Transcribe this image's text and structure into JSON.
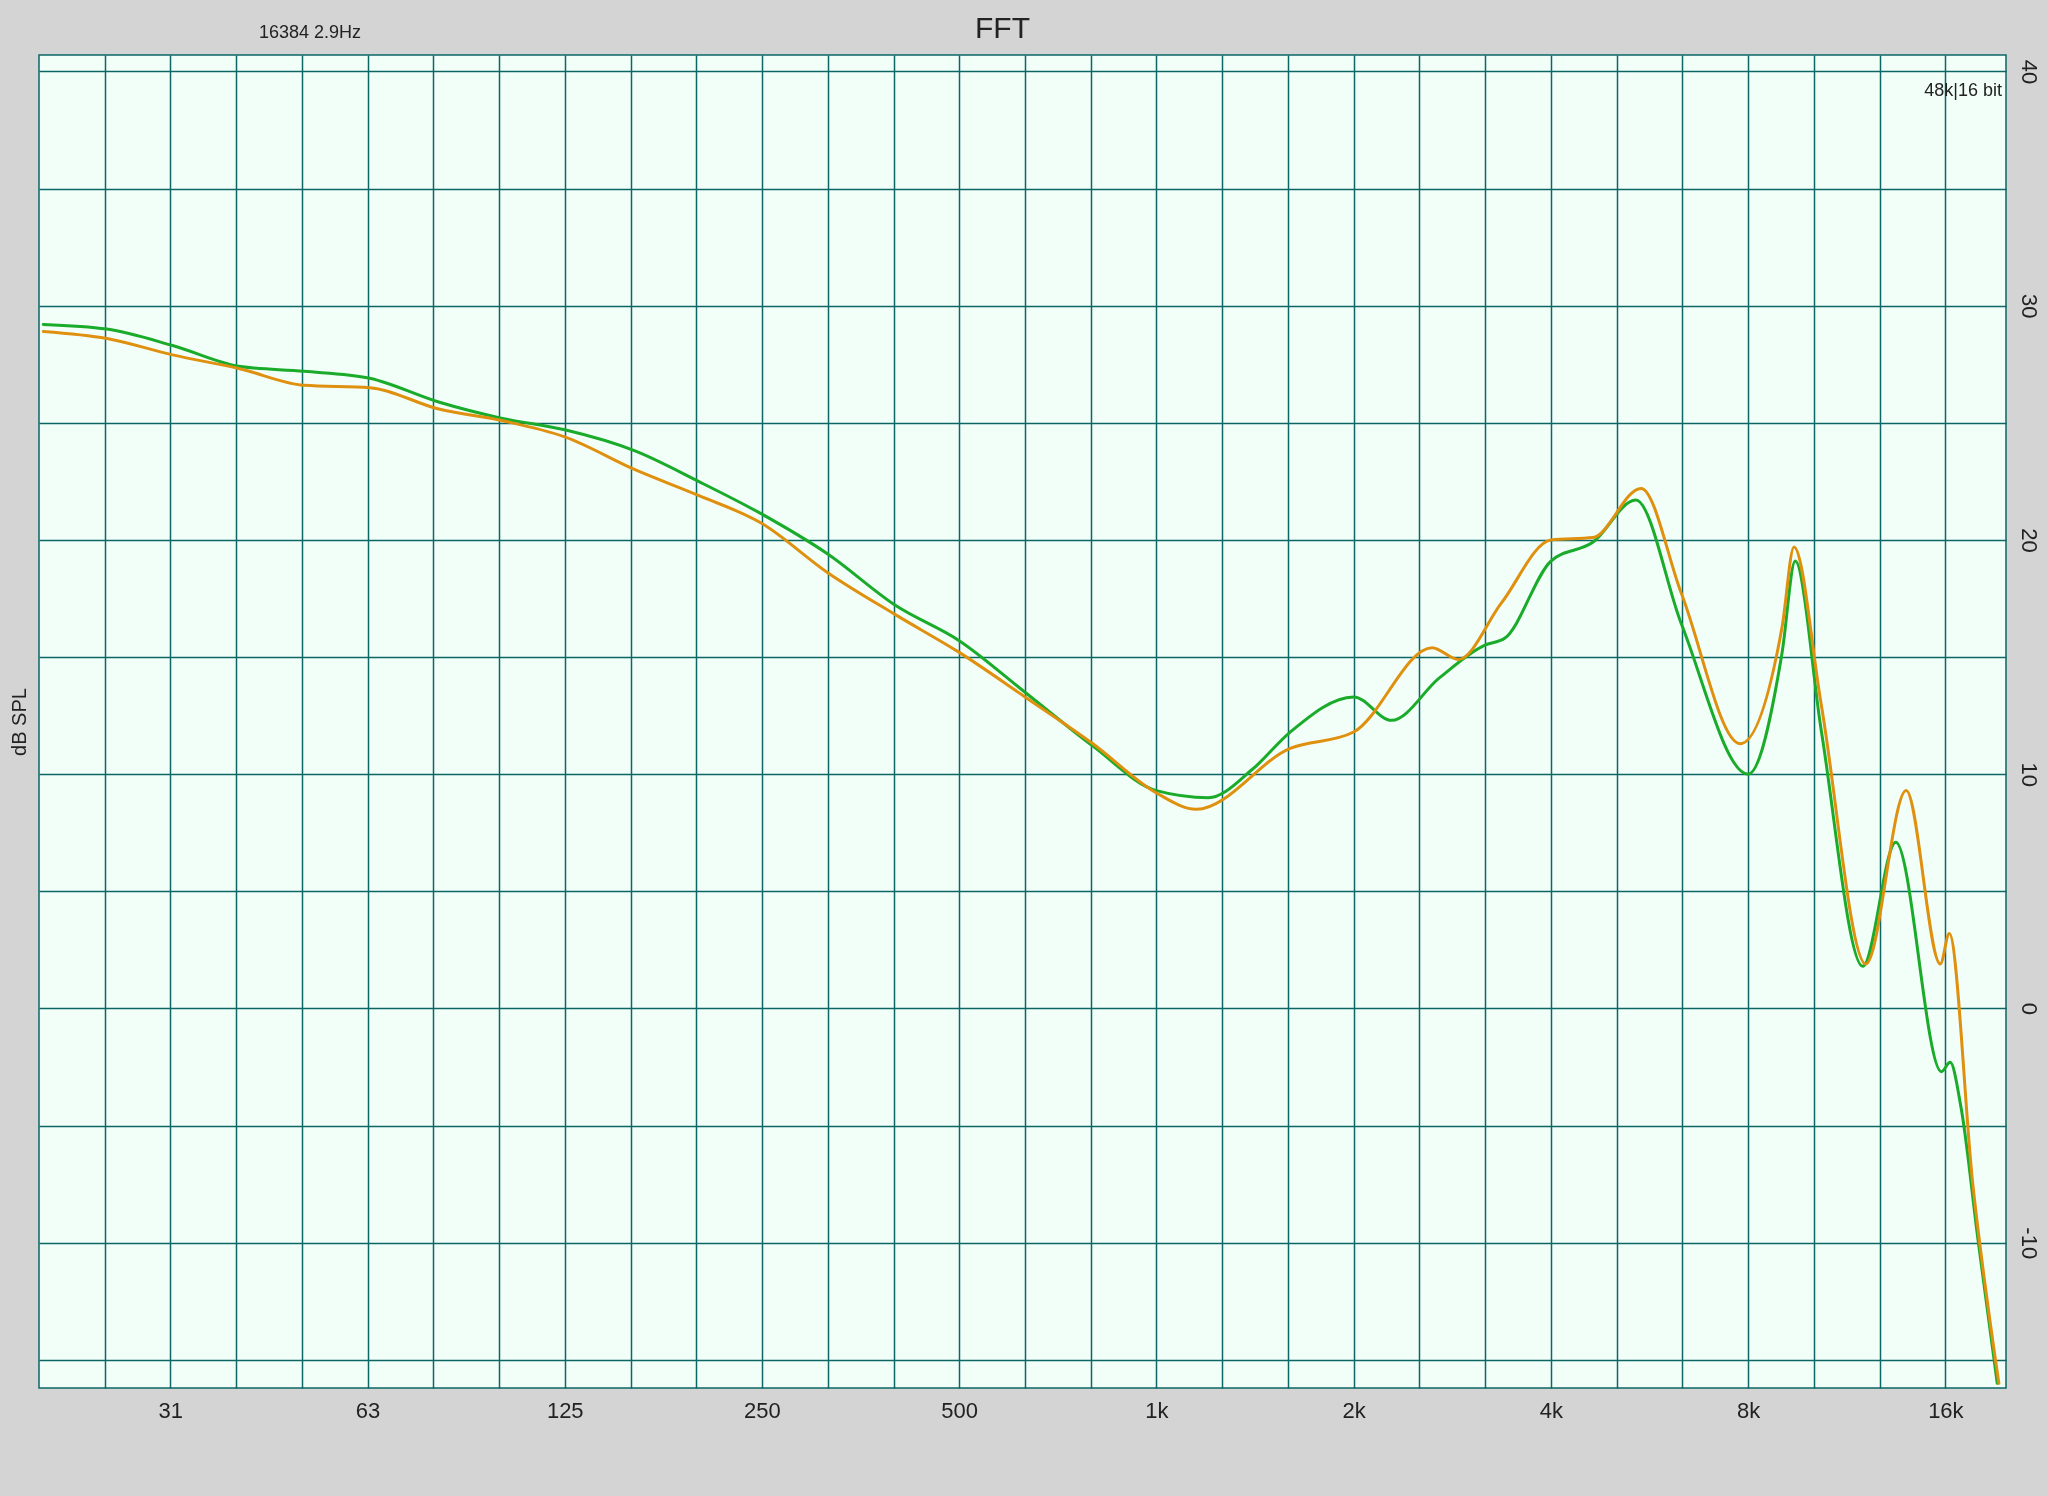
{
  "chart_data": {
    "type": "line",
    "title": "FFT",
    "ylabel": "dB SPL",
    "annotations": [
      "16384  2.9Hz",
      "48k|16 bit"
    ],
    "log": "x",
    "grid": true,
    "line_style": "solid",
    "xlim": [
      19.7,
      19800
    ],
    "ylim": [
      -16.2,
      40.7
    ],
    "xticks": [
      {
        "value": 24.8,
        "label": null
      },
      {
        "value": 31.25,
        "label": "31"
      },
      {
        "value": 39.37,
        "label": null
      },
      {
        "value": 49.61,
        "label": null
      },
      {
        "value": 62.5,
        "label": "63"
      },
      {
        "value": 78.74,
        "label": null
      },
      {
        "value": 99.21,
        "label": null
      },
      125,
      {
        "value": 157.5,
        "label": null
      },
      {
        "value": 198.4,
        "label": null
      },
      250,
      {
        "value": 315,
        "label": null
      },
      {
        "value": 396.9,
        "label": null
      },
      500,
      {
        "value": 630,
        "label": null
      },
      {
        "value": 793.7,
        "label": null
      },
      {
        "value": 1000,
        "label": "1k"
      },
      {
        "value": 1259.9,
        "label": null
      },
      {
        "value": 1587.4,
        "label": null
      },
      {
        "value": 2000,
        "label": "2k"
      },
      {
        "value": 2519.8,
        "label": null
      },
      {
        "value": 3174.8,
        "label": null
      },
      {
        "value": 4000,
        "label": "4k"
      },
      {
        "value": 5039.7,
        "label": null
      },
      {
        "value": 6349.6,
        "label": null
      },
      {
        "value": 8000,
        "label": "8k"
      },
      {
        "value": 10079,
        "label": null
      },
      {
        "value": 12699,
        "label": null
      },
      {
        "value": 16000,
        "label": "16k"
      }
    ],
    "yticks": [
      {
        "value": -15,
        "label": null
      },
      -10,
      {
        "value": -5,
        "label": null
      },
      0,
      {
        "value": 5,
        "label": null
      },
      10,
      {
        "value": 15,
        "label": null
      },
      20,
      {
        "value": 25,
        "label": null
      },
      30,
      {
        "value": 35,
        "label": null
      },
      40
    ],
    "series": [
      {
        "color": "#1aab2a",
        "x": [
          20,
          25,
          31.5,
          40,
          50,
          63,
          80,
          100,
          125,
          160,
          200,
          250,
          315,
          400,
          500,
          630,
          800,
          1000,
          1200,
          1400,
          1600,
          2000,
          2285,
          2700,
          3166,
          3400,
          4000,
          4634,
          5390,
          6330,
          8000,
          9015,
          9440,
          10340,
          11970,
          13440,
          15780,
          16270,
          16900,
          17950,
          19200
        ],
        "values": [
          29.2,
          29.0,
          28.3,
          27.4,
          27.2,
          26.9,
          25.9,
          25.2,
          24.7,
          23.8,
          22.5,
          21.1,
          19.4,
          17.2,
          15.7,
          13.5,
          11.2,
          9.3,
          9.0,
          10.2,
          11.8,
          13.3,
          12.3,
          14.1,
          15.5,
          15.8,
          19.1,
          19.9,
          21.7,
          16.4,
          10.0,
          15.2,
          19.1,
          11.9,
          1.8,
          7.1,
          -2.7,
          -2.3,
          -4.2,
          -9.9,
          -16.0
        ]
      },
      {
        "color": "#e0900f",
        "x": [
          20,
          25,
          31.5,
          40,
          50,
          63,
          80,
          100,
          125,
          160,
          200,
          250,
          315,
          400,
          500,
          630,
          800,
          1000,
          1150,
          1600,
          2000,
          2635,
          2888,
          3360,
          4000,
          4634,
          5491,
          6330,
          7780,
          9015,
          9400,
          10340,
          12100,
          13940,
          15720,
          16220,
          17620,
          19310
        ],
        "values": [
          28.9,
          28.6,
          27.9,
          27.3,
          26.6,
          26.5,
          25.6,
          25.1,
          24.4,
          23.0,
          21.9,
          20.7,
          18.6,
          16.8,
          15.2,
          13.3,
          11.3,
          9.2,
          8.5,
          11.1,
          11.8,
          15.4,
          14.9,
          17.3,
          20.0,
          20.1,
          22.2,
          17.7,
          11.3,
          16.3,
          19.7,
          13.0,
          1.9,
          9.3,
          1.9,
          3.2,
          -7.5,
          -16.0
        ]
      }
    ]
  }
}
